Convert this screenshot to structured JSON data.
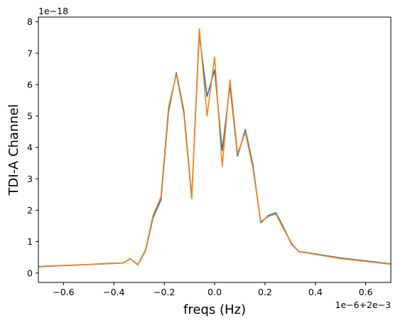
{
  "chart_data": {
    "type": "line",
    "title": "",
    "xlabel": "freqs (Hz)",
    "ylabel": "TDI-A Channel",
    "x_offset_text": "1e−6+2e−3",
    "y_offset_text": "1e−18",
    "x_units_note": "x values are offsets in units of 1e-6 Hz from 2e-3 Hz",
    "y_units_note": "y values in units of 1e-18",
    "xlim": [
      -0.7,
      0.7
    ],
    "ylim": [
      -0.3,
      8.15
    ],
    "xticks": [
      -0.6,
      -0.4,
      -0.2,
      0.0,
      0.2,
      0.4,
      0.6
    ],
    "xtick_labels": [
      "−0.6",
      "−0.4",
      "−0.2",
      "0.0",
      "0.2",
      "0.4",
      "0.6"
    ],
    "yticks": [
      0,
      1,
      2,
      3,
      4,
      5,
      6,
      7,
      8
    ],
    "ytick_labels": [
      "0",
      "1",
      "2",
      "3",
      "4",
      "5",
      "6",
      "7",
      "8"
    ],
    "grid": false,
    "legend": "none",
    "series": [
      {
        "color": "#1f77b4",
        "x": [
          -0.7,
          -0.4,
          -0.364,
          -0.335,
          -0.305,
          -0.274,
          -0.245,
          -0.213,
          -0.183,
          -0.152,
          -0.122,
          -0.091,
          -0.061,
          -0.03,
          0.0,
          0.03,
          0.061,
          0.091,
          0.122,
          0.152,
          0.183,
          0.213,
          0.243,
          0.274,
          0.305,
          0.335,
          0.366,
          0.5,
          0.7
        ],
        "y": [
          0.2,
          0.31,
          0.32,
          0.45,
          0.26,
          0.72,
          1.75,
          2.33,
          5.15,
          6.38,
          5.15,
          2.42,
          7.6,
          5.62,
          6.47,
          3.9,
          5.97,
          3.72,
          4.57,
          3.45,
          1.6,
          1.83,
          1.92,
          1.45,
          0.92,
          0.68,
          0.65,
          0.48,
          0.29
        ]
      },
      {
        "color": "#ff7f0e",
        "x": [
          -0.7,
          -0.4,
          -0.364,
          -0.335,
          -0.305,
          -0.274,
          -0.245,
          -0.213,
          -0.183,
          -0.152,
          -0.122,
          -0.091,
          -0.061,
          -0.03,
          0.0,
          0.03,
          0.061,
          0.091,
          0.122,
          0.152,
          0.183,
          0.213,
          0.243,
          0.274,
          0.305,
          0.335,
          0.366,
          0.5,
          0.7
        ],
        "y": [
          0.21,
          0.3,
          0.32,
          0.46,
          0.27,
          0.75,
          1.82,
          2.43,
          5.28,
          6.33,
          5.05,
          2.36,
          7.78,
          5.0,
          6.88,
          3.4,
          6.15,
          3.8,
          4.48,
          3.35,
          1.64,
          1.8,
          1.88,
          1.4,
          0.95,
          0.67,
          0.64,
          0.46,
          0.28
        ]
      }
    ]
  }
}
